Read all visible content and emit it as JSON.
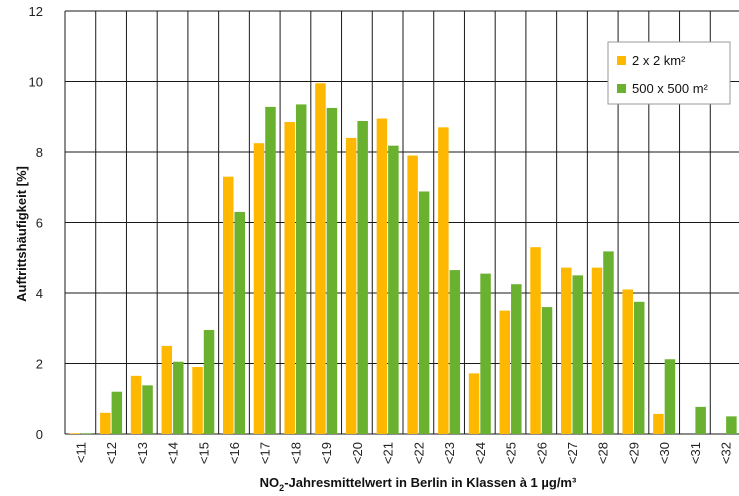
{
  "chart_data": {
    "type": "bar",
    "title": "",
    "xlabel_prefix": "NO",
    "xlabel_sub": "2",
    "xlabel_suffix": "-Jahresmittelwert in Berlin in Klassen à 1 µg/m³",
    "ylabel": "Auftrittshäufigkeit [%]",
    "ylim": [
      0,
      12
    ],
    "yticks": [
      0,
      2,
      4,
      6,
      8,
      10,
      12
    ],
    "grid": true,
    "legend_position": "top-right",
    "categories": [
      "<11",
      "<12",
      "<13",
      "<14",
      "<15",
      "<16",
      "<17",
      "<18",
      "<19",
      "<20",
      "<21",
      "<22",
      "<23",
      "<24",
      "<25",
      "<26",
      "<27",
      "<28",
      "<29",
      "<30",
      "<31",
      "<32"
    ],
    "series": [
      {
        "name": "2 x 2 km²",
        "color": "#FFB800",
        "values": [
          0.02,
          0.6,
          1.65,
          2.5,
          1.9,
          7.3,
          8.25,
          8.85,
          9.95,
          8.4,
          8.95,
          7.9,
          8.7,
          1.72,
          3.5,
          5.3,
          4.72,
          4.72,
          4.1,
          0.57,
          0,
          0
        ]
      },
      {
        "name": "500 x 500 m²",
        "color": "#6AB12F",
        "values": [
          0.02,
          1.2,
          1.38,
          2.05,
          2.95,
          6.3,
          9.28,
          9.35,
          9.25,
          8.88,
          8.18,
          6.88,
          4.65,
          4.55,
          4.25,
          3.6,
          4.5,
          5.18,
          3.75,
          2.12,
          0.77,
          0.5
        ]
      }
    ]
  }
}
